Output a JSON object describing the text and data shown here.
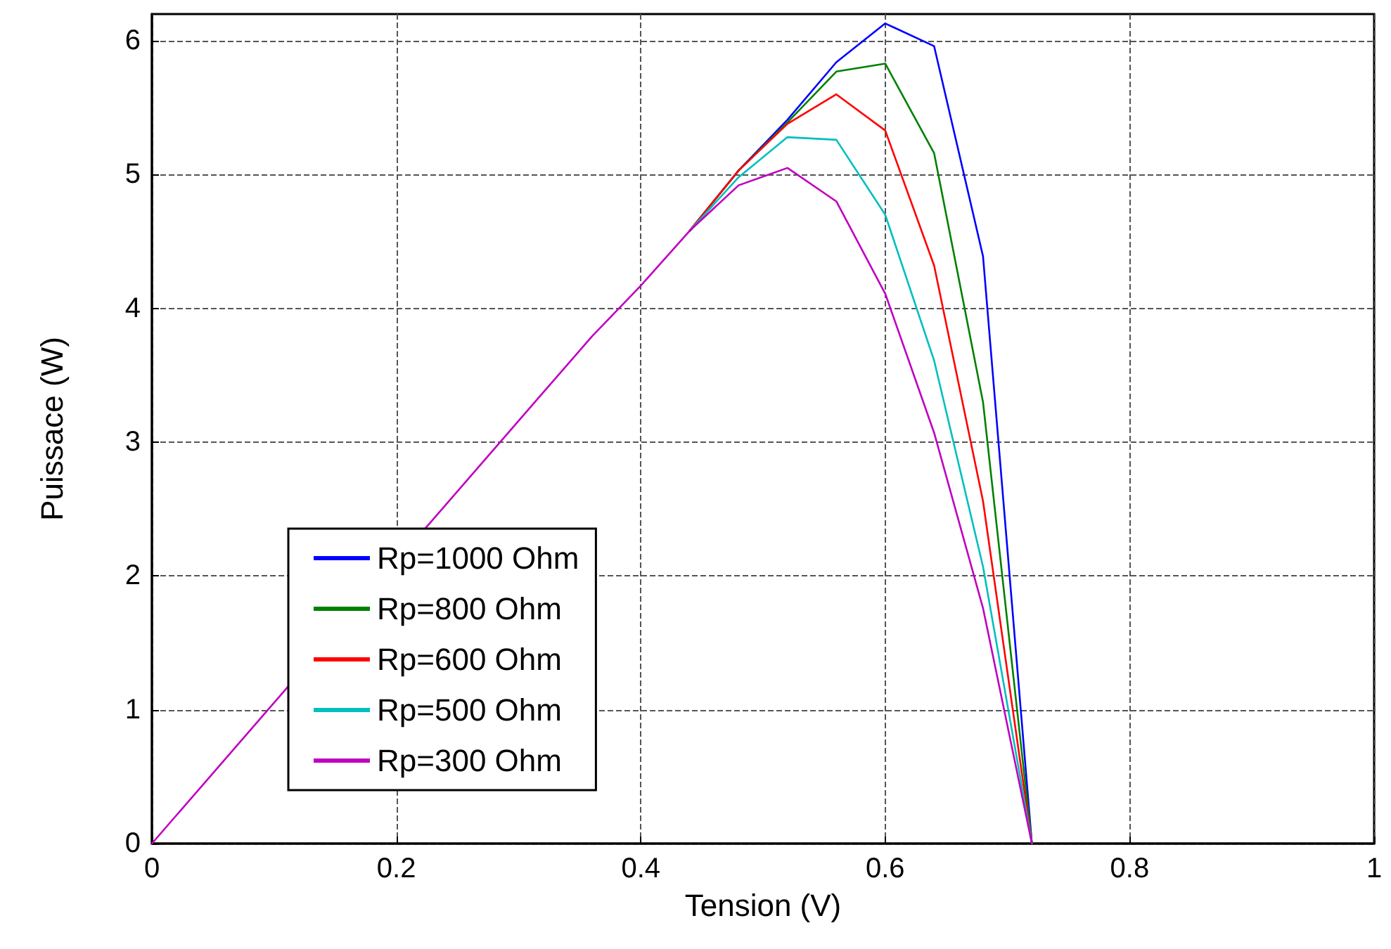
{
  "chart_data": {
    "type": "line",
    "xlabel": "Tension (V)",
    "ylabel": "Puissace (W)",
    "x": [
      0,
      0.32,
      0.36,
      0.4,
      0.44,
      0.48,
      0.52,
      0.56,
      0.6,
      0.64,
      0.68,
      0.72
    ],
    "series": [
      {
        "name": "Rp=1000 Ohm",
        "color": "#0000ff",
        "values": [
          null,
          null,
          null,
          null,
          4.58,
          5.03,
          5.41,
          5.84,
          6.13,
          5.96,
          4.39,
          0
        ]
      },
      {
        "name": "Rp=800 Ohm",
        "color": "#008000",
        "values": [
          null,
          null,
          null,
          null,
          4.58,
          5.03,
          5.39,
          5.77,
          5.83,
          5.16,
          3.3,
          0
        ]
      },
      {
        "name": "Rp=600 Ohm",
        "color": "#ff0000",
        "values": [
          null,
          null,
          null,
          null,
          4.58,
          5.03,
          5.38,
          5.6,
          5.33,
          4.32,
          2.56,
          0
        ]
      },
      {
        "name": "Rp=500 Ohm",
        "color": "#00bfbf",
        "values": [
          null,
          null,
          null,
          null,
          4.58,
          4.98,
          5.28,
          5.26,
          4.7,
          3.61,
          2.07,
          0
        ]
      },
      {
        "name": "Rp=300 Ohm",
        "color": "#bf00bf",
        "values": [
          0,
          3.37,
          3.79,
          4.17,
          4.58,
          4.92,
          5.05,
          4.8,
          4.11,
          3.07,
          1.76,
          0
        ]
      }
    ],
    "xlim": [
      0,
      1
    ],
    "xticks": [
      0,
      0.2,
      0.4,
      0.6,
      0.8,
      1
    ],
    "ylim": [
      0,
      6.2
    ],
    "yticks": [
      0,
      1,
      2,
      3,
      4,
      5,
      6
    ],
    "grid": true,
    "legend": "bottom left",
    "marker": "none",
    "line_style": "solid"
  }
}
